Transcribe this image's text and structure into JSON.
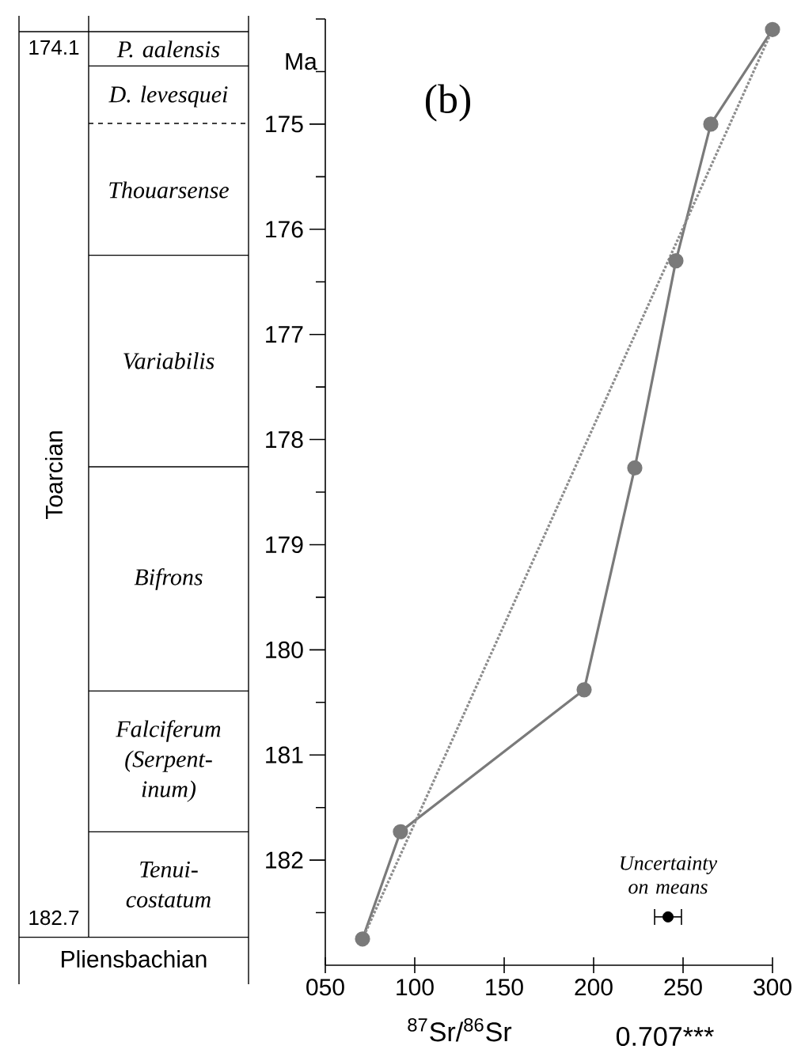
{
  "chart_data": {
    "type": "line",
    "xlabel": "$^{87}$Sr/$^{86}$Sr",
    "ylabel": "Ma",
    "xlim": [
      50,
      300
    ],
    "xticks": [
      {
        "value": 50,
        "label": "050"
      },
      100,
      150,
      200,
      250,
      300
    ],
    "ylim": [
      183,
      174
    ],
    "yticks": [
      {
        "value": 174,
        "label": null
      },
      {
        "value": 174.5,
        "label": null
      },
      175,
      {
        "value": 175.5,
        "label": null
      },
      176,
      {
        "value": 176.5,
        "label": null
      },
      177,
      {
        "value": 177.5,
        "label": null
      },
      178,
      {
        "value": 178.5,
        "label": null
      },
      179,
      {
        "value": 179.5,
        "label": null
      },
      180,
      {
        "value": 180.5,
        "label": null
      },
      181,
      {
        "value": 181.5,
        "label": null
      },
      182,
      {
        "value": 182.5,
        "label": null
      }
    ],
    "grid": false,
    "series": [
      {
        "color": "#7a7a7a",
        "marker": "circle",
        "line_style": "solid",
        "x": [
          300,
          265.5,
          246,
          223,
          194.7,
          92,
          70.8
        ],
        "values": [
          174.1,
          175.0,
          176.3,
          178.27,
          180.38,
          181.73,
          182.75
        ]
      },
      {
        "type": "line",
        "color": "#8c8c8c",
        "marker": "none",
        "line_style": "dotted",
        "x": [
          300,
          70.8
        ],
        "values": [
          174.1,
          182.75
        ]
      },
      {
        "type": "scatter",
        "color": "#000000",
        "marker": "circle",
        "x": [
          241.6
        ],
        "values": [
          182.54
        ],
        "xerrors": [
          7.5
        ]
      }
    ],
    "annotations": [
      "(b)",
      "0.707***",
      "Uncertainty on means",
      "174.1",
      "182.7",
      "Toarcian",
      "P. aalensis",
      "D. levesquei",
      "Thouarsense",
      "Variabilis",
      "Bifrons",
      "Falciferum (Serpent-inum)",
      "Tenui-costatum",
      "Pliensbachian"
    ]
  }
}
